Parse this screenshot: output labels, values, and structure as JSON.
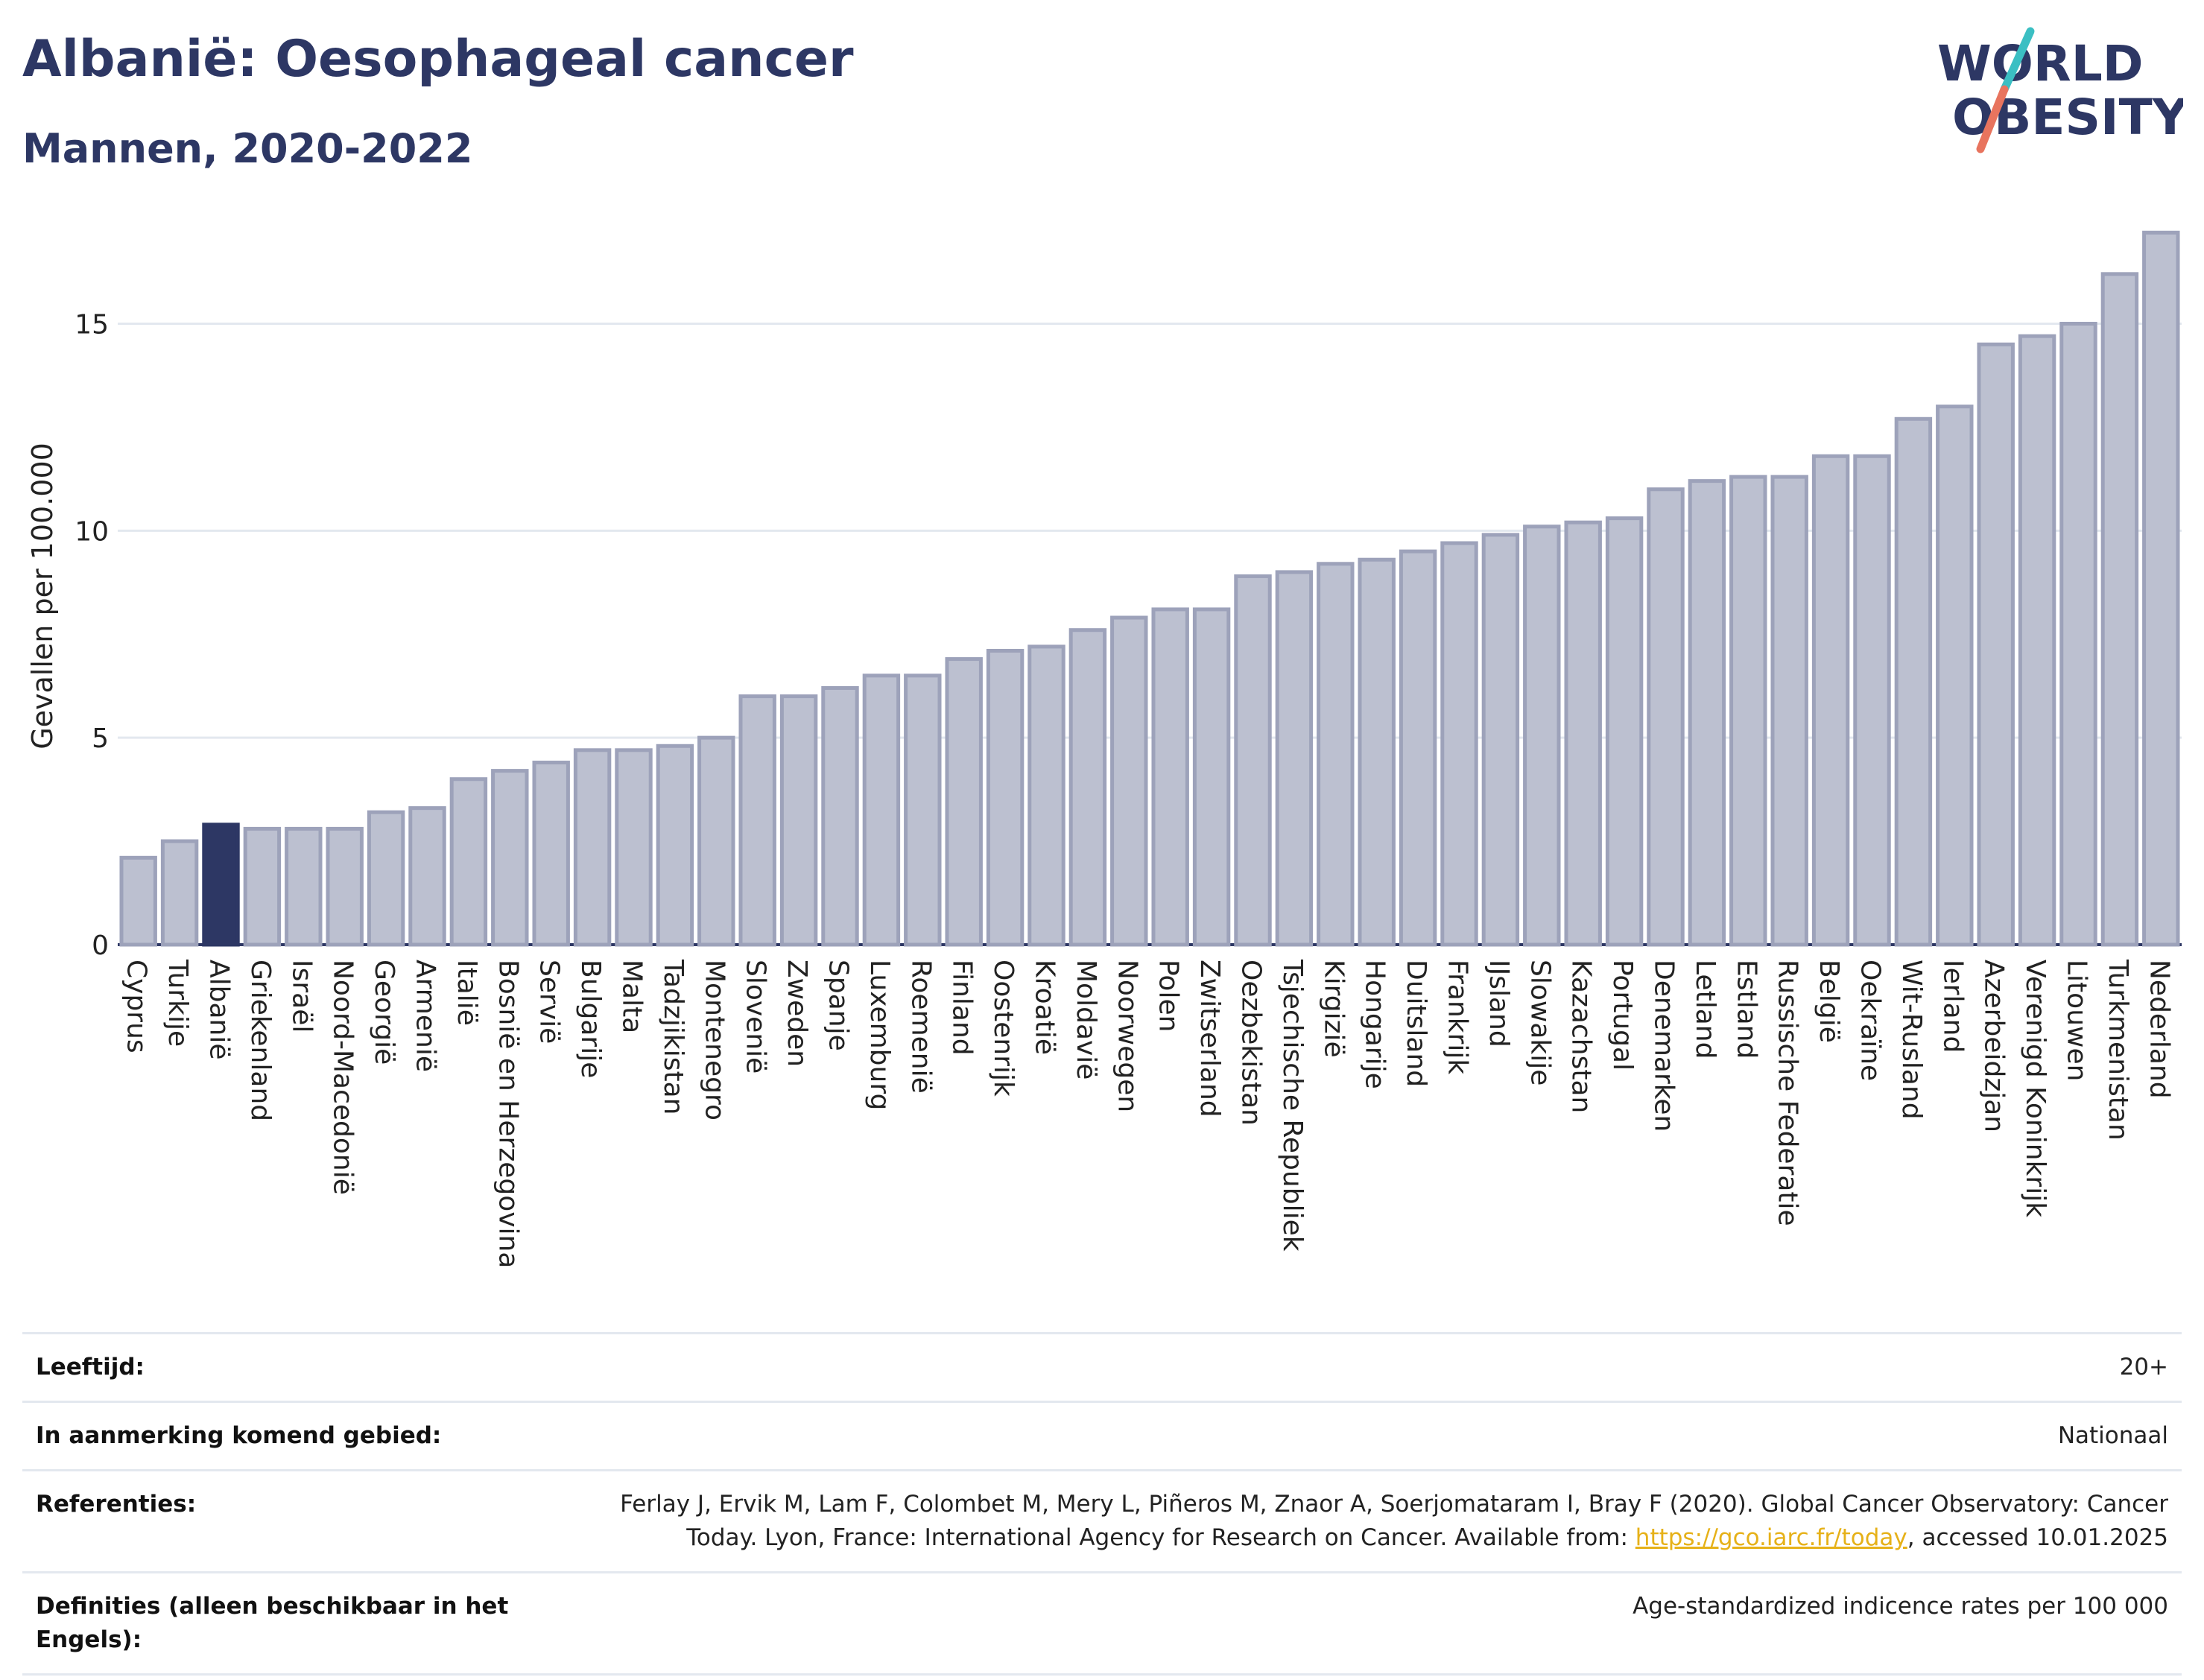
{
  "header": {
    "title": "Albanië: Oesophageal cancer",
    "subtitle": "Mannen, 2020-2022",
    "logo_line1": "WORLD",
    "logo_line2": "OBESITY"
  },
  "colors": {
    "highlight": "#2d3764",
    "bar": "#bcc0d0",
    "bar_edge": "#9da2ba",
    "title": "#2d3764",
    "link": "#e6b118",
    "logo_slash_teal": "#3bbfc3",
    "logo_slash_red": "#e8745e"
  },
  "chart_data": {
    "type": "bar",
    "title": "Albanië: Oesophageal cancer",
    "subtitle": "Mannen, 2020-2022",
    "xlabel": "",
    "ylabel": "Gevallen per 100.000",
    "ylim": [
      0,
      17.6
    ],
    "yticks": [
      0,
      5,
      10,
      15
    ],
    "grid": true,
    "highlight": "Albanië",
    "categories": [
      "Cyprus",
      "Turkije",
      "Albanië",
      "Griekenland",
      "Israël",
      "Noord-Macedonië",
      "Georgië",
      "Armenië",
      "Italië",
      "Bosnië en Herzegovina",
      "Servië",
      "Bulgarije",
      "Malta",
      "Tadzjikistan",
      "Montenegro",
      "Slovenië",
      "Zweden",
      "Spanje",
      "Luxemburg",
      "Roemenië",
      "Finland",
      "Oostenrijk",
      "Kroatië",
      "Moldavië",
      "Noorwegen",
      "Polen",
      "Zwitserland",
      "Oezbekistan",
      "Tsjechische Republiek",
      "Kirgizië",
      "Hongarije",
      "Duitsland",
      "Frankrijk",
      "IJsland",
      "Slowakije",
      "Kazachstan",
      "Portugal",
      "Denemarken",
      "Letland",
      "Estland",
      "Russische Federatie",
      "België",
      "Oekraïne",
      "Wit-Rusland",
      "Ierland",
      "Azerbeidzjan",
      "Verenigd Koninkrijk",
      "Litouwen",
      "Turkmenistan",
      "Nederland"
    ],
    "values": [
      2.1,
      2.5,
      2.9,
      2.8,
      2.8,
      2.8,
      3.2,
      3.3,
      4.0,
      4.2,
      4.4,
      4.7,
      4.7,
      4.8,
      5.0,
      6.0,
      6.0,
      6.2,
      6.5,
      6.5,
      6.9,
      7.1,
      7.2,
      7.6,
      7.9,
      8.1,
      8.1,
      8.9,
      9.0,
      9.2,
      9.3,
      9.5,
      9.7,
      9.9,
      10.1,
      10.2,
      10.3,
      11.0,
      11.2,
      11.3,
      11.3,
      11.8,
      11.8,
      12.7,
      13.0,
      14.5,
      14.7,
      15.0,
      16.2,
      17.2
    ]
  },
  "meta": {
    "age_label": "Leeftijd:",
    "age_value": "20+",
    "area_label": "In aanmerking komend gebied:",
    "area_value": "Nationaal",
    "ref_label": "Referenties:",
    "ref_text_1": "Ferlay J, Ervik M, Lam F, Colombet M, Mery L, Piñeros M, Znaor A, Soerjomataram I, Bray F (2020). Global Cancer Observatory: Cancer Today. Lyon, France: International Agency for Research on Cancer. Available from: ",
    "ref_link": "https://gco.iarc.fr/today",
    "ref_text_2": ", accessed 10.01.2025",
    "def_label": "Definities (alleen beschikbaar in het Engels):",
    "def_value": "Age-standardized indicence rates per 100 000"
  }
}
